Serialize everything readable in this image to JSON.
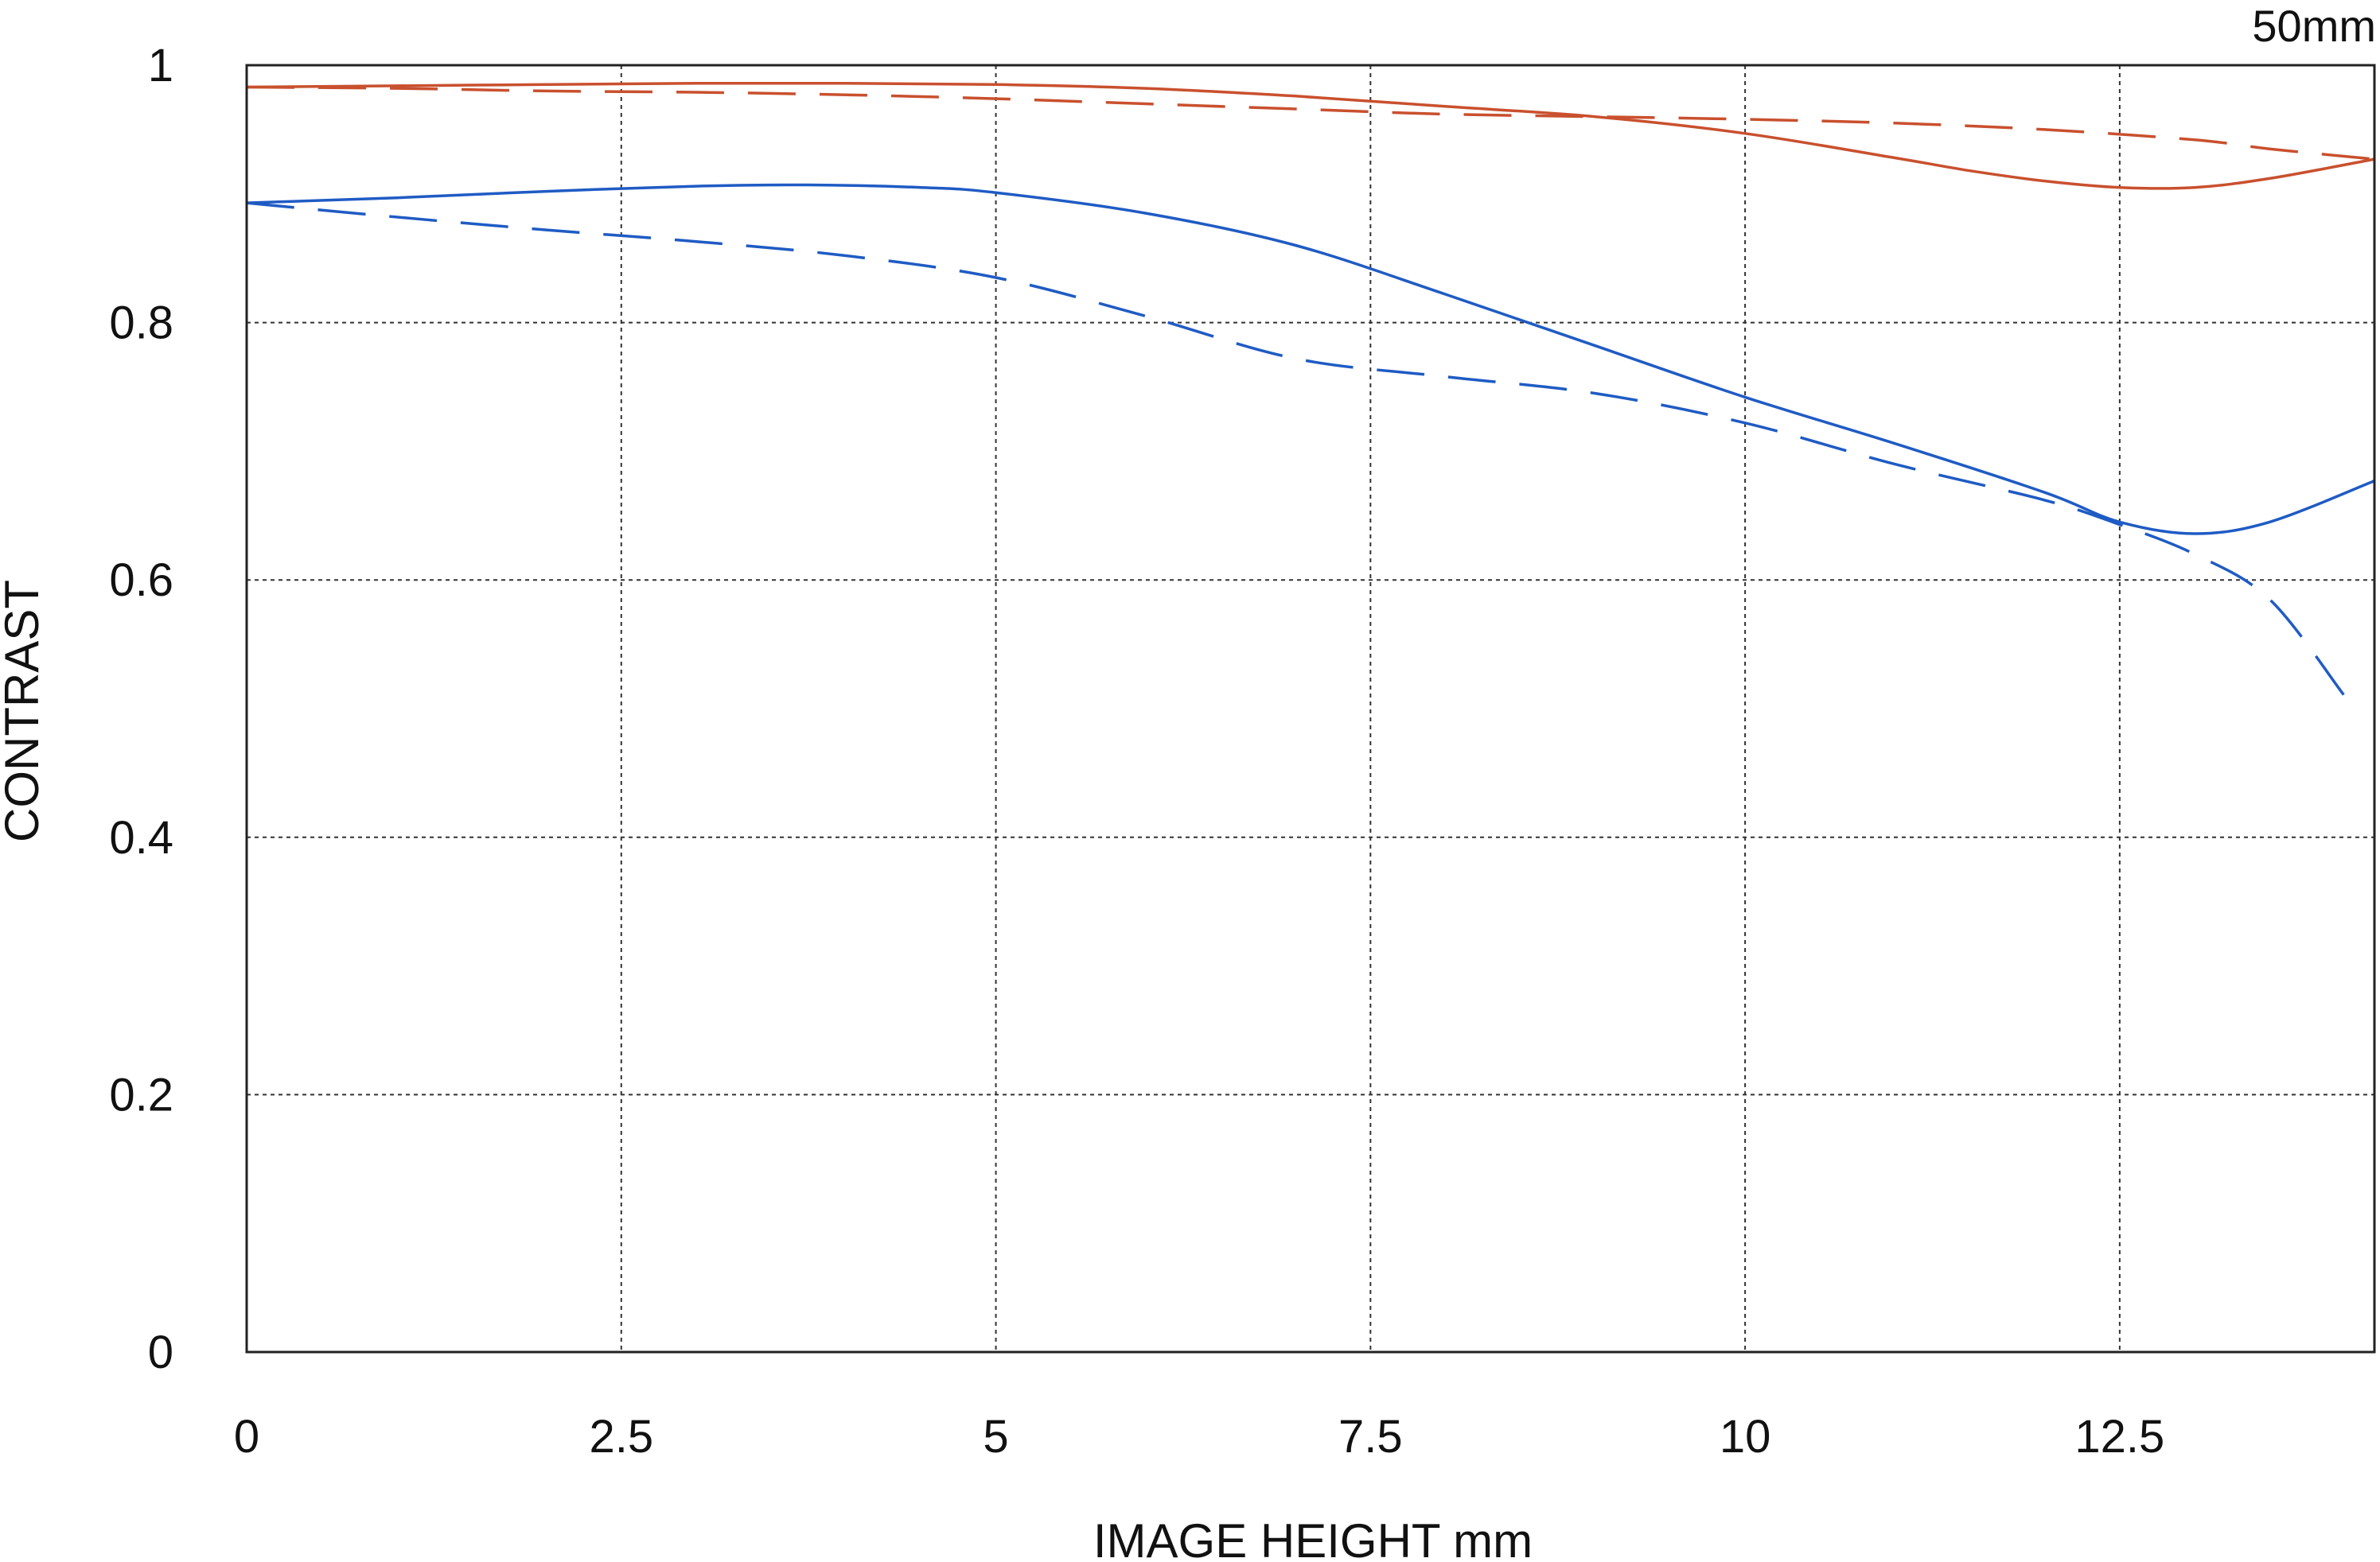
{
  "chart_data": {
    "type": "line",
    "title": "",
    "subtitle": "50mm",
    "xlabel": "IMAGE HEIGHT  mm",
    "ylabel": "CONTRAST",
    "xlim": [
      0,
      14.2
    ],
    "ylim": [
      0,
      1
    ],
    "xticks": [
      0,
      2.5,
      5,
      7.5,
      10,
      12.5
    ],
    "xtick_labels": [
      "0",
      "2.5",
      "5",
      "7.5",
      "10",
      "12.5"
    ],
    "yticks": [
      0,
      0.2,
      0.4,
      0.6,
      0.8,
      1
    ],
    "ytick_labels": [
      "0",
      "0.2",
      "0.4",
      "0.6",
      "0.8",
      "1"
    ],
    "grid": true,
    "legend": "none",
    "series": [
      {
        "color": "#c9502e",
        "style": "solid",
        "x": [
          0,
          1,
          2,
          3,
          4,
          5,
          6,
          7,
          8,
          9,
          10,
          11,
          11.5,
          12,
          12.5,
          13,
          13.5,
          14.2
        ],
        "y": [
          0.983,
          0.984,
          0.985,
          0.986,
          0.986,
          0.985,
          0.982,
          0.976,
          0.968,
          0.96,
          0.947,
          0.928,
          0.918,
          0.91,
          0.905,
          0.905,
          0.912,
          0.927
        ]
      },
      {
        "color": "#c9502e",
        "style": "dashed",
        "x": [
          0,
          1,
          2,
          3,
          4,
          5,
          6,
          7,
          8,
          9,
          10,
          11,
          12,
          13,
          13.5,
          14.2
        ],
        "y": [
          0.983,
          0.982,
          0.98,
          0.979,
          0.977,
          0.974,
          0.97,
          0.966,
          0.962,
          0.96,
          0.958,
          0.955,
          0.95,
          0.942,
          0.935,
          0.927
        ]
      },
      {
        "color": "#1f5bc4",
        "style": "solid",
        "x": [
          0,
          1,
          2,
          3,
          3.7,
          4.5,
          5,
          6,
          7,
          8,
          9,
          10,
          11,
          12,
          12.5,
          13,
          13.5,
          14.2
        ],
        "y": [
          0.893,
          0.897,
          0.902,
          0.906,
          0.907,
          0.905,
          0.901,
          0.885,
          0.86,
          0.822,
          0.782,
          0.742,
          0.706,
          0.668,
          0.645,
          0.636,
          0.645,
          0.677
        ]
      },
      {
        "color": "#1f5bc4",
        "style": "dashed",
        "x": [
          0,
          1,
          2,
          3,
          4,
          5,
          6,
          7,
          8,
          9,
          10,
          11,
          12,
          12.5,
          13,
          13.5,
          14
        ],
        "y": [
          0.893,
          0.882,
          0.872,
          0.863,
          0.852,
          0.835,
          0.805,
          0.772,
          0.758,
          0.745,
          0.722,
          0.69,
          0.662,
          0.643,
          0.62,
          0.585,
          0.51
        ]
      }
    ]
  }
}
